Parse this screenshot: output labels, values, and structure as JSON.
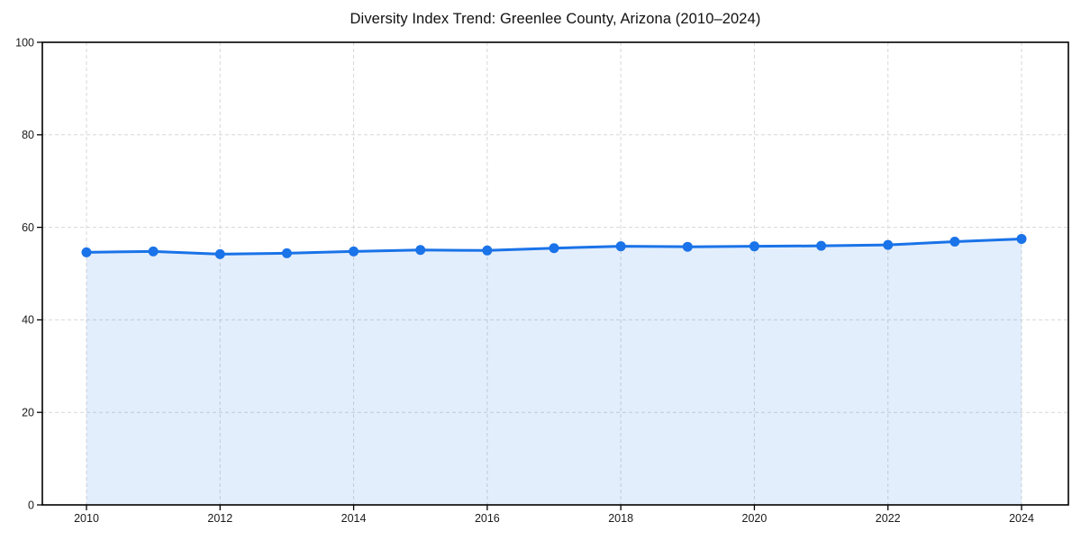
{
  "figure": {
    "background": "#ffffff"
  },
  "chart_data": {
    "type": "area",
    "title": "Diversity Index Trend: Greenlee County, Arizona (2010–2024)",
    "x": [
      2010,
      2011,
      2012,
      2013,
      2014,
      2015,
      2016,
      2017,
      2018,
      2019,
      2020,
      2021,
      2022,
      2023,
      2024
    ],
    "series": [
      {
        "name": "Diversity Index",
        "values": [
          54.6,
          54.8,
          54.2,
          54.4,
          54.8,
          55.1,
          55.0,
          55.5,
          55.9,
          55.8,
          55.9,
          56.0,
          56.2,
          56.9,
          57.5
        ]
      }
    ],
    "xlabel": "",
    "ylabel": "",
    "ylim": [
      0,
      100
    ],
    "xlim": [
      2009.34,
      2024.72
    ],
    "yticks": [
      0,
      20,
      40,
      60,
      80,
      100
    ],
    "xticks": [
      2010,
      2012,
      2014,
      2016,
      2018,
      2020,
      2022,
      2024
    ],
    "grid": true,
    "grid_style": "dashed",
    "legend_position": "none",
    "marker": "circle",
    "colors": {
      "line": "#1a73e8",
      "marker": "#1a73e8",
      "fill": "rgba(26,115,232,0.12)",
      "grid": "#d7d7d7",
      "axis": "#000000",
      "tick_label": "#1a1a1a",
      "title": "#111111"
    }
  }
}
